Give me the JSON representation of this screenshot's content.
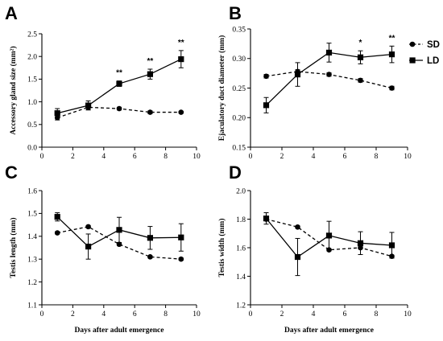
{
  "legend": [
    {
      "series": "SD",
      "label": "SD",
      "marker": "circle",
      "line": "dashed"
    },
    {
      "series": "LD",
      "label": "LD",
      "marker": "square",
      "line": "solid"
    }
  ],
  "chart_data": [
    {
      "panel": "A",
      "type": "line",
      "ylabel": "Accessory gland size (mm²)",
      "xlabel": "",
      "xlim": [
        0,
        10
      ],
      "ylim": [
        0.0,
        2.5
      ],
      "xticks": [
        "0",
        "2",
        "4",
        "6",
        "8",
        "10"
      ],
      "yticks": [
        "0.0",
        "0.5",
        "1.0",
        "1.5",
        "2.0",
        "2.5"
      ],
      "x": [
        1,
        3,
        5,
        7,
        9
      ],
      "series": [
        {
          "name": "SD",
          "values": [
            0.65,
            0.88,
            0.85,
            0.77,
            0.77
          ],
          "errors": [
            0.05,
            0.05,
            0.03,
            0.03,
            0.02
          ]
        },
        {
          "name": "LD",
          "values": [
            0.75,
            0.92,
            1.4,
            1.61,
            1.94
          ],
          "errors": [
            0.1,
            0.1,
            0.06,
            0.11,
            0.19
          ]
        }
      ],
      "annotations": [
        {
          "x": 5,
          "text": "**"
        },
        {
          "x": 7,
          "text": "**"
        },
        {
          "x": 9,
          "text": "**"
        }
      ]
    },
    {
      "panel": "B",
      "type": "line",
      "ylabel": "Ejaculatory duct diameter (mm)",
      "xlabel": "",
      "xlim": [
        0,
        10
      ],
      "ylim": [
        0.15,
        0.35
      ],
      "xticks": [
        "0",
        "2",
        "4",
        "6",
        "8",
        "10"
      ],
      "yticks": [
        "0.15",
        "0.20",
        "0.25",
        "0.30",
        "0.35"
      ],
      "x": [
        1,
        3,
        5,
        7,
        9
      ],
      "series": [
        {
          "name": "SD",
          "values": [
            0.27,
            0.278,
            0.273,
            0.263,
            0.25
          ],
          "errors": [
            0.003,
            0.003,
            0.003,
            0.003,
            0.003
          ]
        },
        {
          "name": "LD",
          "values": [
            0.221,
            0.273,
            0.31,
            0.302,
            0.307
          ],
          "errors": [
            0.013,
            0.02,
            0.016,
            0.011,
            0.014
          ]
        }
      ],
      "annotations": [
        {
          "x": 7,
          "text": "*"
        },
        {
          "x": 9,
          "text": "**"
        }
      ]
    },
    {
      "panel": "C",
      "type": "line",
      "ylabel": "Testis length (mm)",
      "xlabel": "Days after adult emergence",
      "xlim": [
        0,
        10
      ],
      "ylim": [
        1.1,
        1.6
      ],
      "xticks": [
        "0",
        "2",
        "4",
        "6",
        "8",
        "10"
      ],
      "yticks": [
        "1.1",
        "1.2",
        "1.3",
        "1.4",
        "1.5",
        "1.6"
      ],
      "x": [
        1,
        3,
        5,
        7,
        9
      ],
      "series": [
        {
          "name": "SD",
          "values": [
            1.415,
            1.442,
            1.365,
            1.31,
            1.3
          ],
          "errors": [
            0.005,
            0.005,
            0.005,
            0.005,
            0.005
          ]
        },
        {
          "name": "LD",
          "values": [
            1.485,
            1.355,
            1.428,
            1.393,
            1.395
          ],
          "errors": [
            0.018,
            0.055,
            0.055,
            0.05,
            0.06
          ]
        }
      ],
      "annotations": []
    },
    {
      "panel": "D",
      "type": "line",
      "ylabel": "Testis width (mm)",
      "xlabel": "Days after adult emergence",
      "xlim": [
        0,
        10
      ],
      "ylim": [
        1.2,
        2.0
      ],
      "xticks": [
        "0",
        "2",
        "4",
        "6",
        "8",
        "10"
      ],
      "yticks": [
        "1.2",
        "1.4",
        "1.6",
        "1.8",
        "2.0"
      ],
      "x": [
        1,
        3,
        5,
        7,
        9
      ],
      "series": [
        {
          "name": "SD",
          "values": [
            1.8,
            1.745,
            1.585,
            1.6,
            1.54
          ],
          "errors": [
            0.008,
            0.008,
            0.008,
            0.008,
            0.008
          ]
        },
        {
          "name": "LD",
          "values": [
            1.805,
            1.535,
            1.685,
            1.632,
            1.617
          ],
          "errors": [
            0.04,
            0.13,
            0.1,
            0.08,
            0.09
          ]
        }
      ],
      "annotations": []
    }
  ]
}
